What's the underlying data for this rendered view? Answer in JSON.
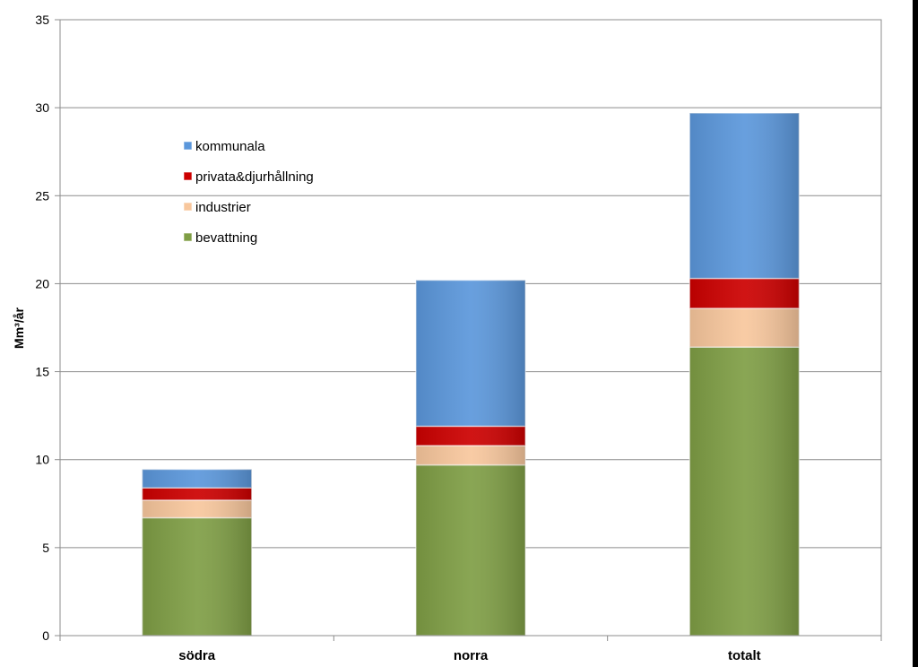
{
  "chart_data": {
    "type": "bar",
    "stacked": true,
    "ylabel": "Mm³/år",
    "ylim": [
      0,
      35
    ],
    "yticks": [
      0,
      5,
      10,
      15,
      20,
      25,
      30,
      35
    ],
    "grid": true,
    "legend_position": "upper-left inside plot",
    "categories": [
      "södra",
      "norra",
      "totalt"
    ],
    "series": [
      {
        "name": "bevattning",
        "color": "#7f9e45",
        "values": [
          6.7,
          9.7,
          16.4
        ]
      },
      {
        "name": "industrier",
        "color": "#f8c79d",
        "values": [
          1.0,
          1.1,
          2.2
        ]
      },
      {
        "name": "privata&djurhållning",
        "color": "#cc0000",
        "values": [
          0.7,
          1.1,
          1.7
        ]
      },
      {
        "name": "kommunala",
        "color": "#5b97db",
        "values": [
          1.05,
          8.3,
          9.4
        ]
      }
    ],
    "legend_order": [
      "kommunala",
      "privata&djurhållning",
      "industrier",
      "bevattning"
    ]
  }
}
